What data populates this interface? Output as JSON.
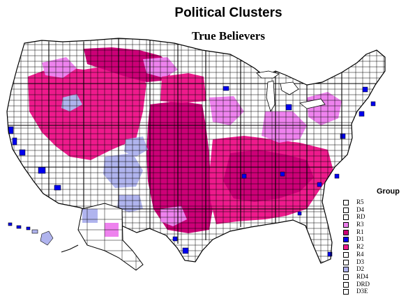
{
  "title": "Political Clusters",
  "subtitle": "True Believers",
  "legend": {
    "title": "Group",
    "items": [
      {
        "label": "R5",
        "color": "#ffffff"
      },
      {
        "label": "D4",
        "color": "#ffffff"
      },
      {
        "label": "RD",
        "color": "#ffffff"
      },
      {
        "label": "R3",
        "color": "#ee82ee"
      },
      {
        "label": "R1",
        "color": "#cc0077"
      },
      {
        "label": "D1",
        "color": "#0000ee"
      },
      {
        "label": "R2",
        "color": "#ee1a8c"
      },
      {
        "label": "R4",
        "color": "#ffffff"
      },
      {
        "label": "D3",
        "color": "#ffffff"
      },
      {
        "label": "D2",
        "color": "#b0b4ee"
      },
      {
        "label": "RD4",
        "color": "#ffffff"
      },
      {
        "label": "DRD",
        "color": "#ffffff"
      },
      {
        "label": "D3E",
        "color": "#ffffff"
      }
    ]
  }
}
